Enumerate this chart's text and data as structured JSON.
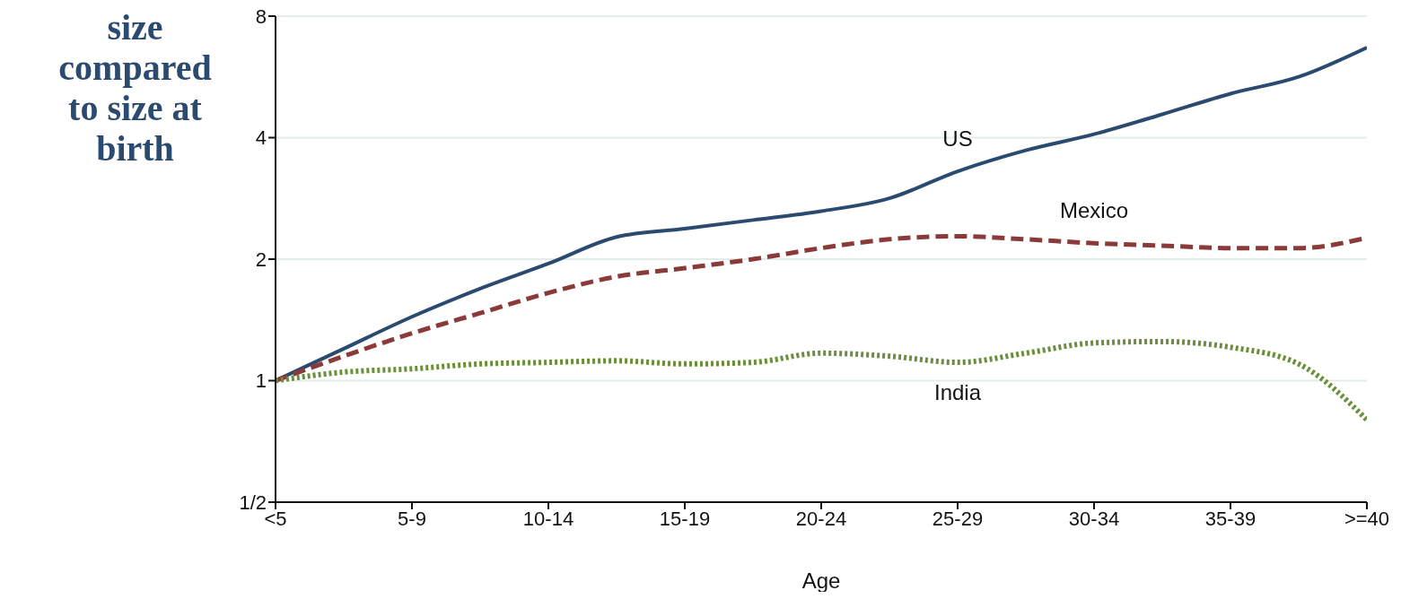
{
  "chart_data": {
    "type": "line",
    "ylabel": "size compared to size at birth",
    "xlabel": "Age",
    "categories": [
      "<5",
      null,
      "5-9",
      null,
      "10-14",
      null,
      "15-19",
      null,
      "20-24",
      null,
      "25-29",
      null,
      "30-34",
      null,
      "35-39",
      null,
      ">=40"
    ],
    "log": "y",
    "ylim": [
      0.5,
      8
    ],
    "yticks": [
      {
        "value": 0.5,
        "label": "1/2"
      },
      1,
      2,
      4,
      8
    ],
    "grid": "y",
    "legend": false,
    "marker": "none",
    "series": [
      {
        "name": "US",
        "color": "#2b4a6f",
        "line_style": "solid",
        "values": [
          1,
          1.2,
          1.44,
          1.69,
          1.95,
          2.27,
          2.38,
          2.5,
          2.63,
          2.83,
          3.3,
          3.72,
          4.08,
          4.57,
          5.14,
          5.66,
          6.69
        ]
      },
      {
        "name": "Mexico",
        "color": "#8b3a3a",
        "line_style": "dashed",
        "values": [
          1,
          1.15,
          1.31,
          1.47,
          1.65,
          1.81,
          1.9,
          2,
          2.13,
          2.24,
          2.28,
          2.24,
          2.19,
          2.16,
          2.13,
          2.13,
          2.26
        ]
      },
      {
        "name": "India",
        "color": "#6b8e3a",
        "line_style": "dotted",
        "values": [
          1,
          1.05,
          1.07,
          1.1,
          1.11,
          1.12,
          1.1,
          1.11,
          1.17,
          1.15,
          1.11,
          1.17,
          1.24,
          1.25,
          1.21,
          1.1,
          0.8
        ]
      }
    ]
  }
}
